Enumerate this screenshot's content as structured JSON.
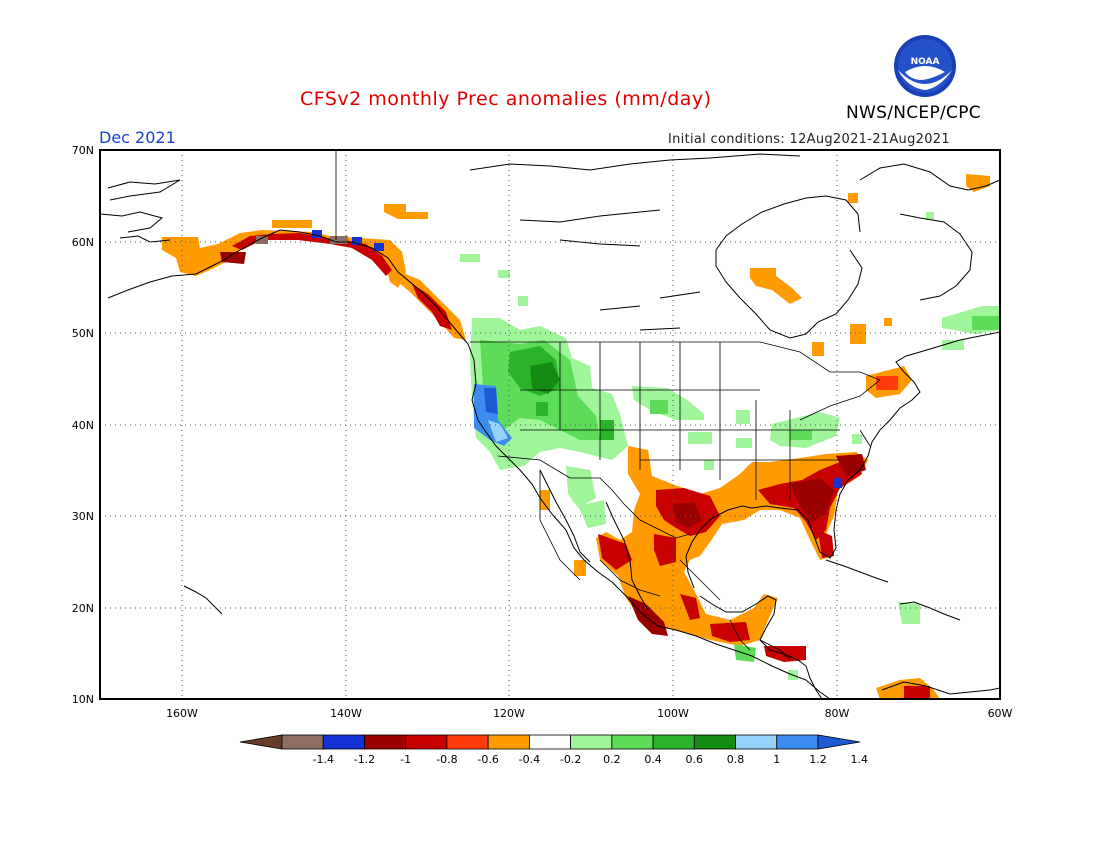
{
  "header": {
    "title": "CFSv2 monthly Prec anomalies (mm/day)",
    "agency": "NWS/NCEP/CPC",
    "logo_text": "NOAA",
    "month": "Dec 2021",
    "initial_conditions": "Initial conditions: 12Aug2021-21Aug2021"
  },
  "map": {
    "lat_labels": [
      "70N",
      "60N",
      "50N",
      "40N",
      "30N",
      "20N",
      "10N"
    ],
    "lon_labels": [
      "160W",
      "140W",
      "120W",
      "100W",
      "80W",
      "60W"
    ]
  },
  "colorbar": {
    "labels": [
      "-1.4",
      "-1.2",
      "-1",
      "-0.8",
      "-0.6",
      "-0.4",
      "-0.2",
      "0.2",
      "0.4",
      "0.6",
      "0.8",
      "1",
      "1.2",
      "1.4"
    ],
    "colors": [
      "#6b3b2a",
      "#8d6e63",
      "#1432d6",
      "#9a0000",
      "#c80000",
      "#ff3c0a",
      "#ff9a00",
      "#ffffff",
      "#a0f59a",
      "#5ddc5a",
      "#2ab42a",
      "#148c14",
      "#96d2fa",
      "#3c8cf0",
      "#1e5ad2"
    ]
  }
}
